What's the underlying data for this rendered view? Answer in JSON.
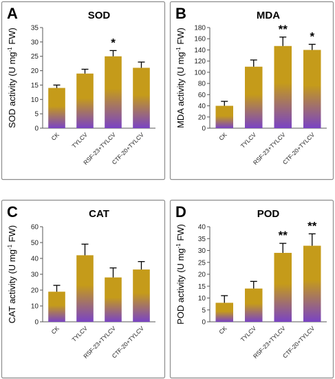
{
  "colors": {
    "bar_top": "#c59b1a",
    "bar_bottom": "#7a43c4",
    "error_bar": "#000000"
  },
  "chart_data": [
    {
      "type": "bar",
      "letter": "A",
      "title": "SOD",
      "ylabel_main": "SOD activity (U mg",
      "ylabel_sup": "-1",
      "ylabel_tail": " FW)",
      "ylim": [
        0,
        35
      ],
      "yticks": [
        0,
        5,
        10,
        15,
        20,
        25,
        30,
        35
      ],
      "categories": [
        "CK",
        "TYLCV",
        "RSF-23+TYLCV",
        "CTF-20+TYLCV"
      ],
      "values": [
        14,
        19,
        25,
        21
      ],
      "errors": [
        1,
        1.5,
        2,
        2
      ],
      "significance": [
        "",
        "",
        "*",
        ""
      ]
    },
    {
      "type": "bar",
      "letter": "B",
      "title": "MDA",
      "ylabel_main": "MDA activity (U mg",
      "ylabel_sup": "-1",
      "ylabel_tail": " FW)",
      "ylim": [
        0,
        180
      ],
      "yticks": [
        0,
        20,
        40,
        60,
        80,
        100,
        120,
        140,
        160,
        180
      ],
      "categories": [
        "CK",
        "TYLCV",
        "RSF-23+TYLCV",
        "CTF-20+TYLCV"
      ],
      "values": [
        40,
        110,
        147,
        140
      ],
      "errors": [
        8,
        12,
        16,
        10
      ],
      "significance": [
        "",
        "",
        "**",
        "*"
      ]
    },
    {
      "type": "bar",
      "letter": "C",
      "title": "CAT",
      "ylabel_main": "CAT activity (U mg",
      "ylabel_sup": "-1",
      "ylabel_tail": " FW)",
      "ylim": [
        0,
        60
      ],
      "yticks": [
        0,
        10,
        20,
        30,
        40,
        50,
        60
      ],
      "categories": [
        "CK",
        "TYLCV",
        "RSF-23+TYLCV",
        "CTF-20+TYLCV"
      ],
      "values": [
        19,
        42,
        28,
        33
      ],
      "errors": [
        4,
        7,
        6,
        5
      ],
      "significance": [
        "",
        "",
        "",
        ""
      ]
    },
    {
      "type": "bar",
      "letter": "D",
      "title": "POD",
      "ylabel_main": "POD activity (U mg",
      "ylabel_sup": "-1",
      "ylabel_tail": " FW)",
      "ylim": [
        0,
        40
      ],
      "yticks": [
        0,
        5,
        10,
        15,
        20,
        25,
        30,
        35,
        40
      ],
      "categories": [
        "CK",
        "TYLCV",
        "RSF-23+TYLCV",
        "CTF-20+TYLCV"
      ],
      "values": [
        8,
        14,
        29,
        32
      ],
      "errors": [
        3,
        3,
        4,
        5
      ],
      "significance": [
        "",
        "",
        "**",
        "**"
      ]
    }
  ]
}
